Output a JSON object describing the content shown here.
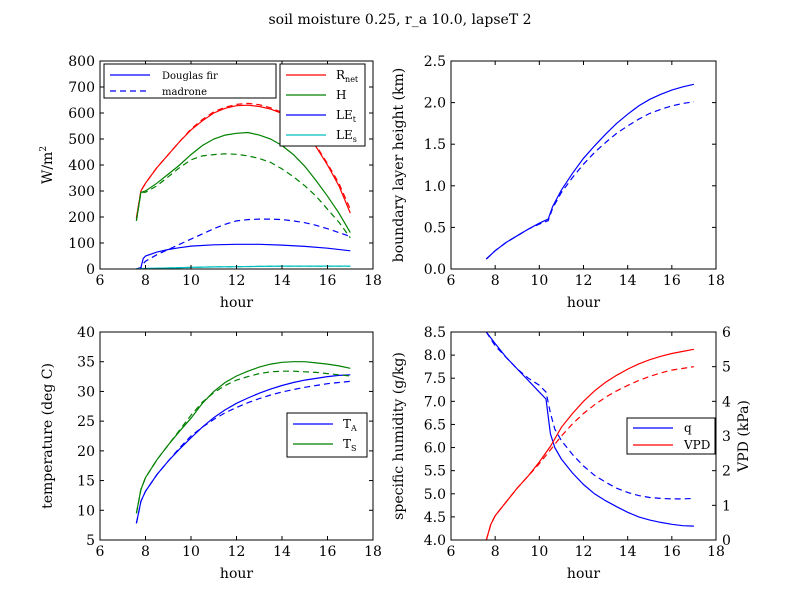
{
  "figure_title": "soil moisture 0.25, r_a 10.0, lapseT 2",
  "colors": {
    "red": "#ff0000",
    "green": "#008000",
    "blue": "#0000ff",
    "cyan": "#00bfbf"
  },
  "chart_data": [
    {
      "id": "energy",
      "type": "line",
      "xlabel": "hour",
      "ylabel": "W/m^2",
      "xlim": [
        6,
        18
      ],
      "ylim": [
        0,
        800
      ],
      "xticks": [
        6,
        8,
        10,
        12,
        14,
        16,
        18
      ],
      "yticks": [
        0,
        100,
        200,
        300,
        400,
        500,
        600,
        700,
        800
      ],
      "legend_styles": [
        {
          "label": "Douglas fir",
          "dash": "solid"
        },
        {
          "label": "madrone",
          "dash": "dashed"
        }
      ],
      "legend_series": [
        {
          "label": "R",
          "sub": "net",
          "color": "#ff0000"
        },
        {
          "label": "H",
          "sub": "",
          "color": "#008000"
        },
        {
          "label": "LE",
          "sub": "t",
          "color": "#0000ff"
        },
        {
          "label": "LE",
          "sub": "s",
          "color": "#00bfbf"
        }
      ],
      "series": [
        {
          "name": "R_net Douglas fir",
          "color": "#ff0000",
          "dash": "solid",
          "x": [
            7.6,
            7.8,
            8,
            8.5,
            9,
            9.5,
            10,
            10.5,
            11,
            11.5,
            12,
            12.5,
            13,
            13.5,
            14,
            14.5,
            15,
            15.5,
            16,
            16.5,
            17
          ],
          "y": [
            195,
            300,
            330,
            390,
            440,
            490,
            535,
            570,
            600,
            618,
            628,
            630,
            625,
            615,
            598,
            570,
            530,
            470,
            400,
            320,
            215
          ]
        },
        {
          "name": "R_net madrone",
          "color": "#ff0000",
          "dash": "dashed",
          "x": [
            7.6,
            7.8,
            8,
            8.5,
            9,
            9.5,
            10,
            10.5,
            11,
            11.5,
            12,
            12.5,
            13,
            13.5,
            14,
            14.5,
            15,
            15.5,
            16,
            16.5,
            17
          ],
          "y": [
            195,
            300,
            330,
            390,
            440,
            490,
            538,
            575,
            605,
            622,
            633,
            637,
            632,
            620,
            602,
            575,
            535,
            475,
            405,
            330,
            230
          ]
        },
        {
          "name": "H Douglas fir",
          "color": "#008000",
          "dash": "solid",
          "x": [
            7.6,
            7.8,
            8,
            8.5,
            9,
            9.5,
            10,
            10.5,
            11,
            11.5,
            12,
            12.5,
            13,
            13.5,
            14,
            14.5,
            15,
            15.5,
            16,
            16.5,
            17
          ],
          "y": [
            185,
            295,
            300,
            330,
            365,
            400,
            440,
            475,
            500,
            515,
            522,
            525,
            515,
            500,
            475,
            440,
            395,
            340,
            280,
            215,
            140
          ]
        },
        {
          "name": "H madrone",
          "color": "#008000",
          "dash": "dashed",
          "x": [
            7.6,
            7.8,
            8,
            8.5,
            9,
            9.5,
            10,
            10.5,
            11,
            11.5,
            12,
            12.5,
            13,
            13.5,
            14,
            14.5,
            15,
            15.5,
            16,
            16.5,
            17
          ],
          "y": [
            185,
            295,
            295,
            320,
            355,
            390,
            420,
            435,
            440,
            443,
            441,
            435,
            425,
            410,
            385,
            355,
            320,
            280,
            230,
            180,
            120
          ]
        },
        {
          "name": "LE_t Douglas fir",
          "color": "#0000ff",
          "dash": "solid",
          "x": [
            7.6,
            7.8,
            7.9,
            8,
            8.5,
            9,
            9.5,
            10,
            11,
            12,
            13,
            14,
            15,
            16,
            17
          ],
          "y": [
            0,
            5,
            40,
            50,
            65,
            75,
            82,
            88,
            93,
            95,
            95,
            92,
            87,
            80,
            70
          ]
        },
        {
          "name": "LE_t madrone",
          "color": "#0000ff",
          "dash": "dashed",
          "x": [
            7.6,
            7.8,
            7.9,
            8,
            8.5,
            9,
            9.5,
            10,
            10.5,
            11,
            11.5,
            12,
            12.5,
            13,
            13.5,
            14,
            14.5,
            15,
            15.5,
            16,
            16.5,
            17
          ],
          "y": [
            0,
            5,
            20,
            30,
            55,
            75,
            95,
            115,
            135,
            155,
            172,
            185,
            190,
            192,
            192,
            190,
            185,
            178,
            168,
            155,
            140,
            125
          ]
        },
        {
          "name": "LE_s Douglas fir",
          "color": "#00bfbf",
          "dash": "solid",
          "x": [
            7.6,
            8,
            9,
            10,
            11,
            12,
            13,
            14,
            15,
            16,
            17
          ],
          "y": [
            0,
            2,
            4,
            6,
            8,
            9,
            10,
            11,
            11,
            11,
            11
          ]
        },
        {
          "name": "LE_s madrone",
          "color": "#00bfbf",
          "dash": "dashed",
          "x": [
            7.6,
            8,
            9,
            10,
            11,
            12,
            13,
            14,
            15,
            16,
            17
          ],
          "y": [
            0,
            2,
            4,
            6,
            8,
            9,
            10,
            11,
            11,
            11,
            11
          ]
        }
      ]
    },
    {
      "id": "boundary_layer",
      "type": "line",
      "xlabel": "hour",
      "ylabel": "boundary layer height (km)",
      "xlim": [
        6,
        18
      ],
      "ylim": [
        0,
        2.5
      ],
      "xticks": [
        6,
        8,
        10,
        12,
        14,
        16,
        18
      ],
      "yticks": [
        0.0,
        0.5,
        1.0,
        1.5,
        2.0,
        2.5
      ],
      "ytick_labels": [
        "0.0",
        "0.5",
        "1.0",
        "1.5",
        "2.0",
        "2.5"
      ],
      "series": [
        {
          "name": "Douglas fir",
          "color": "#0000ff",
          "dash": "solid",
          "x": [
            7.6,
            8,
            8.5,
            9,
            9.5,
            10,
            10.4,
            10.6,
            11,
            11.5,
            12,
            12.5,
            13,
            13.5,
            14,
            14.5,
            15,
            15.5,
            16,
            16.5,
            17
          ],
          "y": [
            0.12,
            0.22,
            0.32,
            0.4,
            0.48,
            0.55,
            0.6,
            0.75,
            0.95,
            1.15,
            1.33,
            1.48,
            1.62,
            1.75,
            1.86,
            1.96,
            2.04,
            2.1,
            2.15,
            2.19,
            2.22
          ]
        },
        {
          "name": "madrone",
          "color": "#0000ff",
          "dash": "dashed",
          "x": [
            7.6,
            8,
            8.5,
            9,
            9.5,
            10,
            10.4,
            10.6,
            11,
            11.5,
            12,
            12.5,
            13,
            13.5,
            14,
            14.5,
            15,
            15.5,
            16,
            16.5,
            17
          ],
          "y": [
            0.12,
            0.22,
            0.32,
            0.4,
            0.48,
            0.54,
            0.58,
            0.73,
            0.92,
            1.1,
            1.26,
            1.4,
            1.52,
            1.63,
            1.72,
            1.8,
            1.87,
            1.92,
            1.96,
            1.99,
            2.01
          ]
        }
      ]
    },
    {
      "id": "temperature",
      "type": "line",
      "xlabel": "hour",
      "ylabel": "temperature (deg C)",
      "xlim": [
        6,
        18
      ],
      "ylim": [
        5,
        40
      ],
      "xticks": [
        6,
        8,
        10,
        12,
        14,
        16,
        18
      ],
      "yticks": [
        5,
        10,
        15,
        20,
        25,
        30,
        35,
        40
      ],
      "legend_series": [
        {
          "label": "T",
          "sub": "A",
          "color": "#0000ff"
        },
        {
          "label": "T",
          "sub": "S",
          "color": "#008000"
        }
      ],
      "series": [
        {
          "name": "T_A Douglas fir",
          "color": "#0000ff",
          "dash": "solid",
          "x": [
            7.6,
            7.8,
            8,
            8.5,
            9,
            9.5,
            10,
            10.5,
            11,
            11.5,
            12,
            12.5,
            13,
            13.5,
            14,
            14.5,
            15,
            15.5,
            16,
            16.5,
            17
          ],
          "y": [
            7.8,
            11.5,
            13.2,
            16.0,
            18.3,
            20.3,
            22.2,
            24.0,
            25.6,
            26.9,
            28.0,
            28.9,
            29.7,
            30.4,
            31.0,
            31.5,
            31.9,
            32.2,
            32.5,
            32.7,
            32.8
          ]
        },
        {
          "name": "T_A madrone",
          "color": "#0000ff",
          "dash": "dashed",
          "x": [
            7.6,
            7.8,
            8,
            8.5,
            9,
            9.5,
            10,
            10.5,
            11,
            11.5,
            12,
            12.5,
            13,
            13.5,
            14,
            14.5,
            15,
            15.5,
            16,
            16.5,
            17
          ],
          "y": [
            7.8,
            11.5,
            13.2,
            16.0,
            18.3,
            20.5,
            22.5,
            24.0,
            25.3,
            26.4,
            27.3,
            28.1,
            28.8,
            29.4,
            29.9,
            30.3,
            30.7,
            31.0,
            31.3,
            31.5,
            31.7
          ]
        },
        {
          "name": "T_S Douglas fir",
          "color": "#008000",
          "dash": "solid",
          "x": [
            7.6,
            7.8,
            8,
            8.5,
            9,
            9.5,
            10,
            10.5,
            11,
            11.5,
            12,
            12.5,
            13,
            13.5,
            14,
            14.5,
            15,
            15.5,
            16,
            16.5,
            17
          ],
          "y": [
            9.5,
            13.5,
            15.5,
            18.5,
            21.0,
            23.3,
            25.5,
            28.0,
            30.0,
            31.5,
            32.6,
            33.4,
            34.1,
            34.6,
            34.9,
            35.0,
            35.0,
            34.8,
            34.6,
            34.3,
            33.9
          ]
        },
        {
          "name": "T_S madrone",
          "color": "#008000",
          "dash": "dashed",
          "x": [
            7.6,
            7.8,
            8,
            8.5,
            9,
            9.5,
            10,
            10.5,
            11,
            11.5,
            12,
            12.5,
            13,
            13.5,
            14,
            14.5,
            15,
            15.5,
            16,
            16.5,
            17
          ],
          "y": [
            9.5,
            13.5,
            15.5,
            18.5,
            21.0,
            23.5,
            26.0,
            28.2,
            29.8,
            31.0,
            31.9,
            32.5,
            33.0,
            33.3,
            33.4,
            33.4,
            33.3,
            33.2,
            33.0,
            32.8,
            32.6
          ]
        }
      ]
    },
    {
      "id": "humidity_vpd",
      "type": "line",
      "xlabel": "hour",
      "ylabel": "specific humidity (g/kg)",
      "y2label": "VPD (kPa)",
      "xlim": [
        6,
        18
      ],
      "ylim": [
        4.0,
        8.5
      ],
      "y2lim": [
        0,
        6
      ],
      "xticks": [
        6,
        8,
        10,
        12,
        14,
        16,
        18
      ],
      "yticks": [
        4.0,
        4.5,
        5.0,
        5.5,
        6.0,
        6.5,
        7.0,
        7.5,
        8.0,
        8.5
      ],
      "ytick_labels": [
        "4.0",
        "4.5",
        "5.0",
        "5.5",
        "6.0",
        "6.5",
        "7.0",
        "7.5",
        "8.0",
        "8.5"
      ],
      "y2ticks": [
        0,
        1,
        2,
        3,
        4,
        5,
        6
      ],
      "legend_series": [
        {
          "label": "q",
          "sub": "",
          "color": "#0000ff"
        },
        {
          "label": "VPD",
          "sub": "",
          "color": "#ff0000"
        }
      ],
      "series": [
        {
          "name": "q Douglas fir",
          "axis": "left",
          "color": "#0000ff",
          "dash": "solid",
          "x": [
            7.6,
            8,
            8.5,
            9,
            9.5,
            10,
            10.3,
            10.5,
            10.7,
            11,
            11.5,
            12,
            12.5,
            13,
            13.5,
            14,
            14.5,
            15,
            15.5,
            16,
            16.5,
            17
          ],
          "y": [
            8.5,
            8.25,
            7.95,
            7.7,
            7.45,
            7.2,
            7.05,
            6.3,
            6.0,
            5.75,
            5.45,
            5.2,
            5.0,
            4.85,
            4.72,
            4.6,
            4.5,
            4.43,
            4.38,
            4.34,
            4.31,
            4.3
          ]
        },
        {
          "name": "q madrone",
          "axis": "left",
          "color": "#0000ff",
          "dash": "dashed",
          "x": [
            7.6,
            8,
            8.5,
            9,
            9.5,
            10,
            10.3,
            10.5,
            10.7,
            11,
            11.5,
            12,
            12.5,
            13,
            13.5,
            14,
            14.5,
            15,
            15.5,
            16,
            16.5,
            17
          ],
          "y": [
            8.5,
            8.2,
            7.95,
            7.7,
            7.5,
            7.35,
            7.2,
            6.75,
            6.4,
            6.15,
            5.85,
            5.6,
            5.4,
            5.25,
            5.12,
            5.03,
            4.96,
            4.92,
            4.9,
            4.89,
            4.89,
            4.9
          ]
        },
        {
          "name": "VPD Douglas fir",
          "axis": "right",
          "color": "#ff0000",
          "dash": "solid",
          "x": [
            7.6,
            7.8,
            8,
            8.5,
            9,
            9.5,
            10,
            10.5,
            11,
            11.5,
            12,
            12.5,
            13,
            13.5,
            14,
            14.5,
            15,
            15.5,
            16,
            16.5,
            17
          ],
          "y": [
            0.0,
            0.45,
            0.7,
            1.1,
            1.5,
            1.85,
            2.25,
            2.7,
            3.25,
            3.65,
            4.0,
            4.3,
            4.55,
            4.75,
            4.93,
            5.08,
            5.2,
            5.3,
            5.38,
            5.44,
            5.5
          ]
        },
        {
          "name": "VPD madrone",
          "axis": "right",
          "color": "#ff0000",
          "dash": "dashed",
          "x": [
            7.6,
            7.8,
            8,
            8.5,
            9,
            9.5,
            10,
            10.5,
            11,
            11.5,
            12,
            12.5,
            13,
            13.5,
            14,
            14.5,
            15,
            15.5,
            16,
            16.5,
            17
          ],
          "y": [
            0.0,
            0.45,
            0.7,
            1.1,
            1.5,
            1.85,
            2.2,
            2.6,
            3.0,
            3.35,
            3.65,
            3.9,
            4.12,
            4.3,
            4.46,
            4.6,
            4.72,
            4.82,
            4.9,
            4.95,
            5.0
          ]
        }
      ]
    }
  ]
}
